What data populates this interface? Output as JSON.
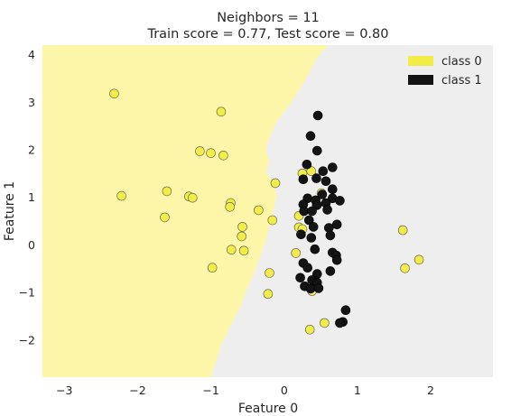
{
  "chart_data": {
    "type": "scatter",
    "title": "Neighbors = 11",
    "subtitle": "Train score = 0.77, Test score = 0.80",
    "xlabel": "Feature 0",
    "ylabel": "Feature 1",
    "xlim": [
      -3.3,
      2.85
    ],
    "ylim": [
      -2.78,
      4.2
    ],
    "xticks": [
      -3,
      -2,
      -1,
      0,
      1,
      2
    ],
    "yticks": [
      -2,
      -1,
      0,
      1,
      2,
      3,
      4
    ],
    "xtick_labels": [
      "−3",
      "−2",
      "−1",
      "0",
      "1",
      "2"
    ],
    "ytick_labels": [
      "−2",
      "−1",
      "0",
      "1",
      "2",
      "3",
      "4"
    ],
    "grid": false,
    "legend_position": "top-right",
    "legend": [
      {
        "label": "class 0",
        "color": "#f2ec46"
      },
      {
        "label": "class 1",
        "color": "#141414"
      }
    ],
    "colors": {
      "region_class0": "#fdf6a8",
      "region_class1": "#eeeeee",
      "class0_point": "#f2ec46",
      "class1_point": "#141414"
    },
    "decision_boundary": {
      "description_points_x_y": [
        [
          0.6,
          4.2
        ],
        [
          0.45,
          3.95
        ],
        [
          0.3,
          3.5
        ],
        [
          0.1,
          3.0
        ],
        [
          -0.1,
          2.6
        ],
        [
          -0.2,
          2.25
        ],
        [
          -0.25,
          2.0
        ],
        [
          -0.2,
          1.75
        ],
        [
          -0.25,
          1.55
        ],
        [
          -0.18,
          1.35
        ],
        [
          -0.1,
          1.05
        ],
        [
          -0.15,
          0.7
        ],
        [
          -0.2,
          0.4
        ],
        [
          -0.25,
          0.1
        ],
        [
          -0.32,
          -0.2
        ],
        [
          -0.4,
          -0.55
        ],
        [
          -0.5,
          -0.9
        ],
        [
          -0.6,
          -1.3
        ],
        [
          -0.75,
          -1.75
        ],
        [
          -0.88,
          -2.2
        ],
        [
          -1.0,
          -2.78
        ]
      ]
    },
    "series": [
      {
        "name": "class 0",
        "points": [
          [
            -2.32,
            3.18
          ],
          [
            -0.86,
            2.8
          ],
          [
            -1.15,
            1.97
          ],
          [
            -1.0,
            1.93
          ],
          [
            -0.83,
            1.88
          ],
          [
            -2.22,
            1.03
          ],
          [
            -1.6,
            1.13
          ],
          [
            -1.3,
            1.02
          ],
          [
            -1.25,
            0.99
          ],
          [
            -0.73,
            0.88
          ],
          [
            -0.74,
            0.8
          ],
          [
            -1.63,
            0.58
          ],
          [
            -0.35,
            0.73
          ],
          [
            -0.16,
            0.52
          ],
          [
            -0.57,
            0.38
          ],
          [
            -0.58,
            0.18
          ],
          [
            -0.72,
            -0.1
          ],
          [
            -0.55,
            -0.12
          ],
          [
            -0.98,
            -0.48
          ],
          [
            -0.2,
            -0.59
          ],
          [
            -0.22,
            -1.03
          ],
          [
            0.25,
            1.5
          ],
          [
            0.37,
            1.55
          ],
          [
            0.51,
            1.09
          ],
          [
            0.44,
            0.83
          ],
          [
            -0.12,
            1.3
          ],
          [
            0.2,
            0.61
          ],
          [
            0.2,
            0.37
          ],
          [
            0.25,
            0.33
          ],
          [
            0.16,
            -0.17
          ],
          [
            0.38,
            -0.97
          ],
          [
            0.35,
            -1.78
          ],
          [
            0.55,
            -1.64
          ],
          [
            1.62,
            0.31
          ],
          [
            1.65,
            -0.49
          ],
          [
            1.84,
            -0.31
          ]
        ]
      },
      {
        "name": "class 1",
        "points": [
          [
            0.46,
            2.72
          ],
          [
            0.36,
            2.29
          ],
          [
            0.45,
            1.98
          ],
          [
            0.31,
            1.69
          ],
          [
            0.53,
            1.55
          ],
          [
            0.66,
            1.63
          ],
          [
            0.26,
            1.38
          ],
          [
            0.44,
            1.4
          ],
          [
            0.57,
            1.34
          ],
          [
            0.66,
            1.17
          ],
          [
            0.52,
            1.06
          ],
          [
            0.66,
            0.98
          ],
          [
            0.32,
            0.98
          ],
          [
            0.43,
            0.94
          ],
          [
            0.76,
            0.93
          ],
          [
            0.26,
            0.85
          ],
          [
            0.45,
            0.84
          ],
          [
            0.57,
            0.88
          ],
          [
            0.27,
            0.71
          ],
          [
            0.38,
            0.71
          ],
          [
            0.59,
            0.74
          ],
          [
            0.34,
            0.52
          ],
          [
            0.4,
            0.38
          ],
          [
            0.61,
            0.36
          ],
          [
            0.72,
            0.43
          ],
          [
            0.23,
            0.22
          ],
          [
            0.37,
            0.15
          ],
          [
            0.63,
            0.2
          ],
          [
            0.42,
            -0.09
          ],
          [
            0.66,
            -0.16
          ],
          [
            0.71,
            -0.22
          ],
          [
            0.72,
            -0.32
          ],
          [
            0.26,
            -0.38
          ],
          [
            0.32,
            -0.48
          ],
          [
            0.45,
            -0.61
          ],
          [
            0.63,
            -0.55
          ],
          [
            0.22,
            -0.69
          ],
          [
            0.38,
            -0.74
          ],
          [
            0.45,
            -0.79
          ],
          [
            0.28,
            -0.87
          ],
          [
            0.36,
            -0.92
          ],
          [
            0.47,
            -0.91
          ],
          [
            0.84,
            -1.37
          ],
          [
            0.8,
            -1.62
          ],
          [
            0.76,
            -1.64
          ]
        ]
      }
    ]
  }
}
